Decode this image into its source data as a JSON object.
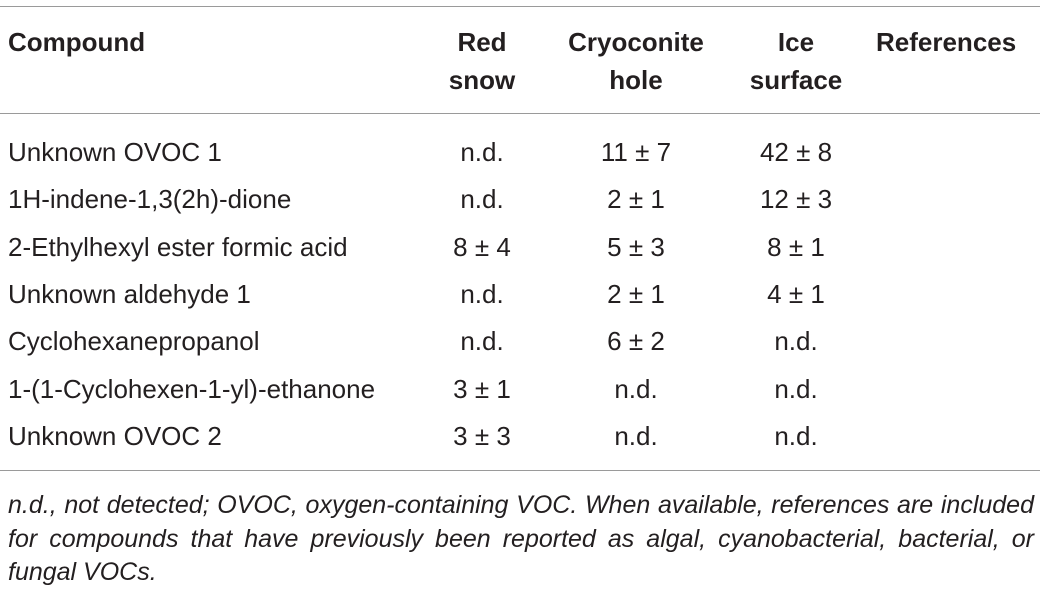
{
  "table": {
    "header": [
      "Compound",
      "Red snow",
      "Cryoconite hole",
      "Ice surface",
      "References"
    ],
    "rows": [
      [
        "Unknown OVOC 1",
        "n.d.",
        "11 ± 7",
        "42 ± 8",
        ""
      ],
      [
        "1H-indene-1,3(2h)-dione",
        "n.d.",
        "2 ± 1",
        "12 ± 3",
        ""
      ],
      [
        "2-Ethylhexyl ester formic acid",
        "8 ± 4",
        "5 ± 3",
        "8 ± 1",
        ""
      ],
      [
        "Unknown aldehyde 1",
        "n.d.",
        "2 ± 1",
        "4 ± 1",
        ""
      ],
      [
        "Cyclohexanepropanol",
        "n.d.",
        "6 ± 2",
        "n.d.",
        ""
      ],
      [
        "1-(1-Cyclohexen-1-yl)-ethanone",
        "3 ± 1",
        "n.d.",
        "n.d.",
        ""
      ],
      [
        "Unknown OVOC 2",
        "3 ± 3",
        "n.d.",
        "n.d.",
        ""
      ]
    ]
  },
  "footnote": "n.d., not detected; OVOC, oxygen-containing VOC. When available, references are included for compounds that have previously been reported as algal, cyanobacterial, bacterial, or fungal VOCs."
}
